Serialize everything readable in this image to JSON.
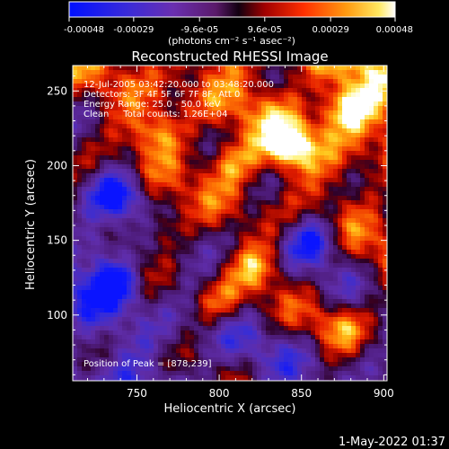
{
  "colorbar": {
    "tick_labels": [
      "-0.00048",
      "-0.00029",
      "-9.6e-05",
      "9.6e-05",
      "0.00029",
      "0.00048"
    ],
    "units": "(photons cm⁻² s⁻¹ asec⁻²)",
    "range": [
      -0.00048,
      0.00048
    ],
    "colormap": "blue-purple-red-orange-yellow-white"
  },
  "chart_data": {
    "type": "heatmap",
    "title": "Reconstructed RHESSI Image",
    "xlabel": "Heliocentric X (arcsec)",
    "ylabel": "Heliocentric Y (arcsec)",
    "xlim": [
      711,
      902
    ],
    "ylim": [
      56,
      267
    ],
    "x_ticks": [
      750,
      800,
      850,
      900
    ],
    "y_ticks": [
      100,
      150,
      200,
      250
    ],
    "annotations": [
      "12-Jul-2005 03:42:20.000 to 03:48:20.000",
      "Detectors: 3F 4F 5F 6F 7F 8F, Att 0",
      "Energy Range: 25.0 - 50.0 keV",
      "Clean     Total counts: 1.26E+04"
    ],
    "peak_label": "Position of Peak = [878,239]",
    "peak_position": [
      878,
      239
    ],
    "bright_sources": [
      {
        "x": 878,
        "y": 239,
        "level": 1.0
      },
      {
        "x": 842,
        "y": 212,
        "level": 0.95
      },
      {
        "x": 808,
        "y": 203,
        "level": 0.85
      },
      {
        "x": 762,
        "y": 222,
        "level": 0.7
      },
      {
        "x": 765,
        "y": 158,
        "level": 0.65
      },
      {
        "x": 822,
        "y": 132,
        "level": 0.7
      },
      {
        "x": 800,
        "y": 108,
        "level": 0.6
      },
      {
        "x": 874,
        "y": 92,
        "level": 0.55
      }
    ],
    "dark_sources": [
      {
        "x": 737,
        "y": 122,
        "level": -0.95
      },
      {
        "x": 738,
        "y": 181,
        "level": -0.85
      },
      {
        "x": 858,
        "y": 150,
        "level": -0.9
      },
      {
        "x": 725,
        "y": 145,
        "level": -0.7
      }
    ]
  },
  "footer": {
    "timestamp": "1-May-2022 01:37"
  }
}
